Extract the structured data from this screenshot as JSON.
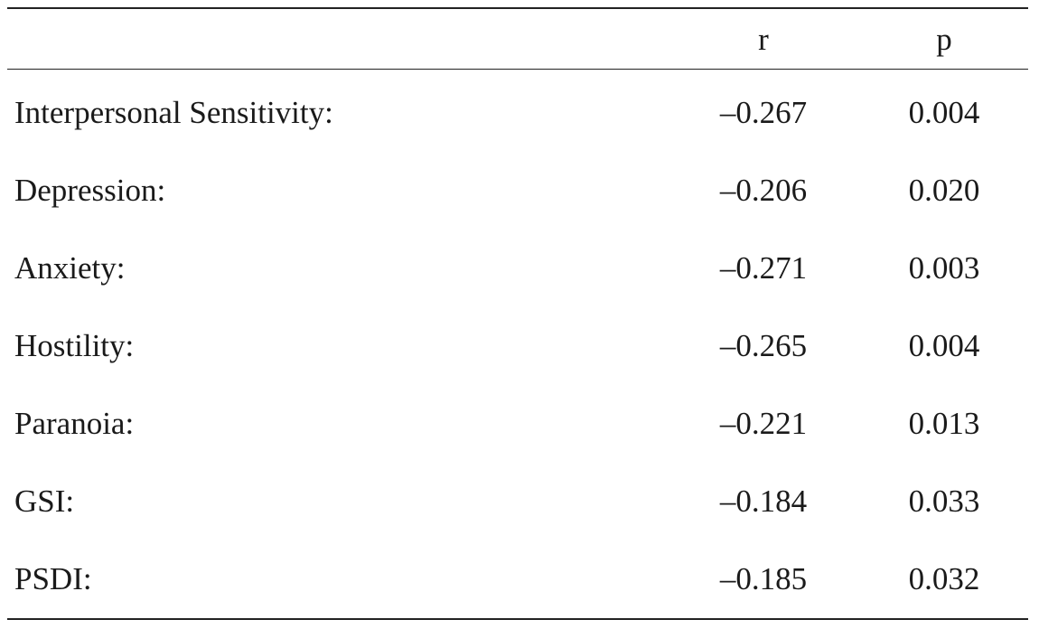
{
  "table": {
    "headers": {
      "label": "",
      "r": "r",
      "p": "p"
    },
    "rows": [
      {
        "label": "Interpersonal Sensitivity:",
        "r": "–0.267",
        "p": "0.004"
      },
      {
        "label": "Depression:",
        "r": "–0.206",
        "p": "0.020"
      },
      {
        "label": "Anxiety:",
        "r": "–0.271",
        "p": "0.003"
      },
      {
        "label": "Hostility:",
        "r": "–0.265",
        "p": "0.004"
      },
      {
        "label": "Paranoia:",
        "r": "–0.221",
        "p": "0.013"
      },
      {
        "label": "GSI:",
        "r": "–0.184",
        "p": "0.033"
      },
      {
        "label": "PSDI:",
        "r": "–0.185",
        "p": "0.032"
      }
    ]
  }
}
